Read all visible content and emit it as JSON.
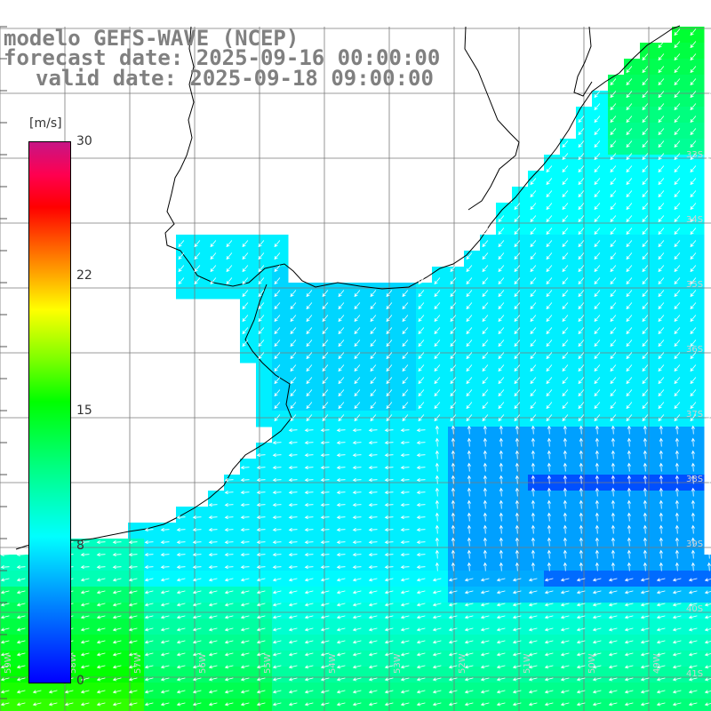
{
  "title": {
    "line1": "modelo GEFS-WAVE (NCEP)",
    "line2": "forecast date: 2025-09-16 00:00:00",
    "line3": "valid date: 2025-09-18 09:00:00"
  },
  "colorbar": {
    "unit": "[m/s]",
    "labels": [
      "30",
      "22",
      "15",
      "8",
      "0"
    ],
    "colors": [
      "#0000ff",
      "#00ffff",
      "#00ff00",
      "#ffff00",
      "#ff0000",
      "#c71585"
    ]
  },
  "map": {
    "region": "South Atlantic – southern Brazil / Uruguay coast",
    "field": "wind speed and direction",
    "lat_labels": [
      "33S",
      "34S",
      "35S",
      "36S",
      "37S",
      "38S",
      "39S",
      "40S",
      "41S"
    ],
    "lon_labels": [
      "59W",
      "58W",
      "57W",
      "56W",
      "55W",
      "54W",
      "53W",
      "52W",
      "51W",
      "50W",
      "49W"
    ]
  }
}
